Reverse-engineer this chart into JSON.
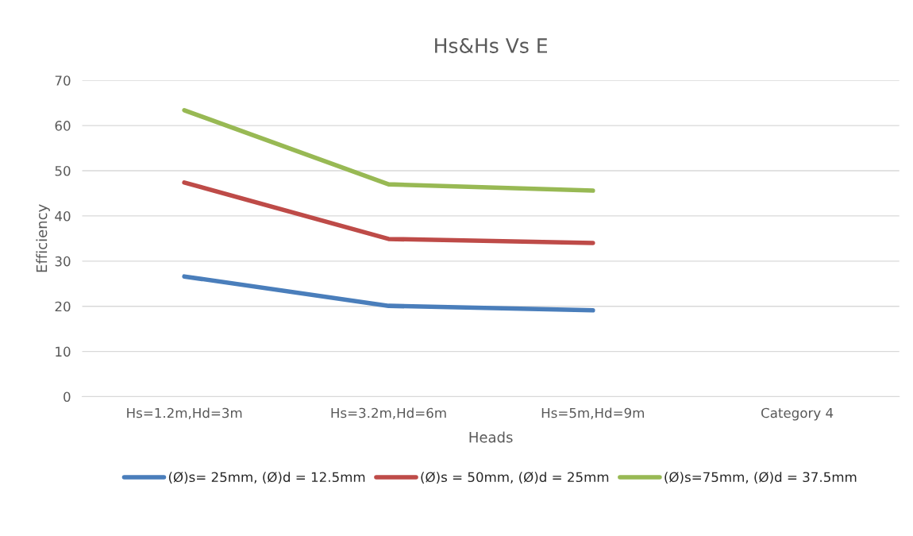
{
  "chart_data": {
    "type": "line",
    "title": "Hs&Hs Vs E",
    "xlabel": "Heads",
    "ylabel": "Efficiency",
    "categories": [
      "Hs=1.2m,Hd=3m",
      "Hs=3.2m,Hd=6m",
      "Hs=5m,Hd=9m",
      "Category 4"
    ],
    "series": [
      {
        "name": "(Ø)s= 25mm, (Ø)d = 12.5mm",
        "color": "#4a7ebb",
        "values": [
          26.6,
          20.1,
          19.1,
          null
        ]
      },
      {
        "name": "(Ø)s = 50mm, (Ø)d = 25mm",
        "color": "#be4b48",
        "values": [
          47.4,
          34.9,
          34.0,
          null
        ]
      },
      {
        "name": "(Ø)s=75mm, (Ø)d = 37.5mm",
        "color": "#98b954",
        "values": [
          63.4,
          47.0,
          45.6,
          null
        ]
      }
    ],
    "ylim": [
      0,
      70
    ],
    "yticks": [
      0,
      10,
      20,
      30,
      40,
      50,
      60,
      70
    ],
    "grid": "y",
    "legend": "bottom",
    "marker": "none",
    "line_style": "solid"
  }
}
